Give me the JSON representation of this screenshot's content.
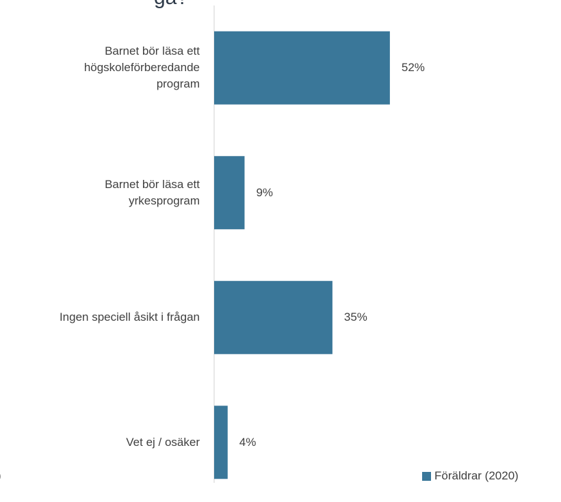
{
  "chart_data": {
    "type": "bar",
    "orientation": "horizontal",
    "title": "gå?",
    "annotations": [
      ")"
    ],
    "categories": [
      "Barnet bör läsa ett\nhögskoleförberedande\nprogram",
      "Barnet bör läsa ett\nyrkesprogram",
      "Ingen speciell åsikt i frågan",
      "Vet ej / osäker"
    ],
    "series": [
      {
        "name": "Föräldrar (2020)",
        "color": "#3a7799",
        "values": [
          52,
          9,
          35,
          4
        ],
        "value_labels": [
          "52%",
          "9%",
          "35%",
          "4%"
        ]
      }
    ],
    "xlim": [
      0,
      100
    ],
    "legend": "bottom-right"
  }
}
